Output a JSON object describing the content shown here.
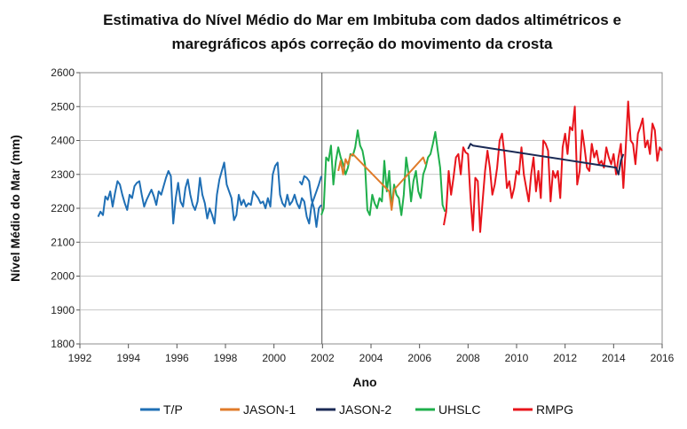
{
  "chart_data": {
    "type": "line",
    "title_line1": "Estimativa do Nível Médio do Mar em Imbituba com dados  altimétricos e",
    "title_line2": "maregráficos após correção do movimento da crosta",
    "xlabel": "Ano",
    "ylabel": "Nível Médio do Mar (mm)",
    "xlim": [
      1992,
      2016
    ],
    "ylim": [
      1800,
      2600
    ],
    "xticks": [
      "1992",
      "1994",
      "1996",
      "1998",
      "2000",
      "2002",
      "2004",
      "2006",
      "2008",
      "2010",
      "2012",
      "2014",
      "2016"
    ],
    "yticks": [
      "1800",
      "1900",
      "2000",
      "2100",
      "2200",
      "2300",
      "2400",
      "2500",
      "2600"
    ],
    "grid": true,
    "legend_position": "bottom",
    "series": [
      {
        "name": "T/P",
        "color": "#1F6FB5",
        "x": [
          1992.75,
          1992.85,
          1992.95,
          1993.05,
          1993.15,
          1993.25,
          1993.35,
          1993.45,
          1993.55,
          1993.65,
          1993.75,
          1993.85,
          1993.95,
          1994.05,
          1994.15,
          1994.25,
          1994.35,
          1994.45,
          1994.55,
          1994.65,
          1994.75,
          1994.85,
          1994.95,
          1995.05,
          1995.15,
          1995.25,
          1995.35,
          1995.45,
          1995.55,
          1995.65,
          1995.75,
          1995.85,
          1995.95,
          1996.05,
          1996.15,
          1996.25,
          1996.35,
          1996.45,
          1996.55,
          1996.65,
          1996.75,
          1996.85,
          1996.95,
          1997.05,
          1997.15,
          1997.25,
          1997.35,
          1997.45,
          1997.55,
          1997.65,
          1997.75,
          1997.85,
          1997.95,
          1998.05,
          1998.15,
          1998.25,
          1998.35,
          1998.45,
          1998.55,
          1998.65,
          1998.75,
          1998.85,
          1998.95,
          1999.05,
          1999.15,
          1999.25,
          1999.35,
          1999.45,
          1999.55,
          1999.65,
          1999.75,
          1999.85,
          1999.95,
          2000.05,
          2000.15,
          2000.25,
          2000.35,
          2000.45,
          2000.55,
          2000.65,
          2000.75,
          2000.85,
          2000.95,
          2001.05,
          2001.15,
          2001.25,
          2001.35,
          2001.45,
          2001.55,
          2001.65,
          2001.75,
          2001.85,
          2001.95
        ],
        "y": [
          2175,
          2190,
          2180,
          2235,
          2225,
          2250,
          2205,
          2245,
          2280,
          2270,
          2240,
          2215,
          2195,
          2240,
          2230,
          2265,
          2275,
          2280,
          2240,
          2205,
          2225,
          2240,
          2255,
          2235,
          2210,
          2250,
          2240,
          2265,
          2290,
          2310,
          2295,
          2155,
          2230,
          2275,
          2220,
          2205,
          2260,
          2285,
          2240,
          2210,
          2195,
          2220,
          2290,
          2240,
          2215,
          2170,
          2200,
          2180,
          2155,
          2240,
          2285,
          2310,
          2335,
          2270,
          2250,
          2230,
          2165,
          2180,
          2240,
          2210,
          2225,
          2205,
          2215,
          2210,
          2250,
          2240,
          2230,
          2215,
          2220,
          2200,
          2230,
          2205,
          2300,
          2325,
          2335,
          2240,
          2215,
          2205,
          2240,
          2210,
          2220,
          2240,
          2215,
          2200,
          2230,
          2220,
          2175,
          2155,
          2210,
          2230,
          2250,
          2270,
          2295
        ],
        "x2": [
          2001.05,
          2001.15,
          2001.25,
          2001.35,
          2001.45,
          2001.55,
          2001.65,
          2001.75,
          2001.85,
          2001.95
        ],
        "y2": [
          2280,
          2270,
          2295,
          2290,
          2280,
          2225,
          2200,
          2145,
          2200,
          2210
        ]
      },
      {
        "name": "JASON-1",
        "color": "#E07B2A",
        "x": [
          2002.65,
          2002.75,
          2002.85,
          2002.95,
          2003.05,
          2003.15,
          2003.25,
          2004.75,
          2004.85,
          2004.95,
          2006.15,
          2006.25
        ],
        "y": [
          2310,
          2340,
          2300,
          2345,
          2330,
          2355,
          2360,
          2250,
          2195,
          2255,
          2350,
          2330
        ]
      },
      {
        "name": "JASON-2",
        "color": "#1B2A55",
        "x": [
          2008.0,
          2008.1,
          2008.2,
          2014.1,
          2014.2,
          2014.3,
          2014.4
        ],
        "y": [
          2375,
          2390,
          2385,
          2320,
          2300,
          2340,
          2360
        ]
      },
      {
        "name": "UHSLC",
        "color": "#1FAF4B",
        "x": [
          2001.95,
          2002.05,
          2002.15,
          2002.25,
          2002.35,
          2002.45,
          2002.55,
          2002.65,
          2002.75,
          2002.85,
          2002.95,
          2003.05,
          2003.15,
          2003.25,
          2003.35,
          2003.45,
          2003.55,
          2003.65,
          2003.75,
          2003.85,
          2003.95,
          2004.05,
          2004.15,
          2004.25,
          2004.35,
          2004.45,
          2004.55,
          2004.65,
          2004.75,
          2004.85,
          2004.95,
          2005.05,
          2005.15,
          2005.25,
          2005.35,
          2005.45,
          2005.55,
          2005.65,
          2005.75,
          2005.85,
          2005.95,
          2006.05,
          2006.15,
          2006.25,
          2006.35,
          2006.45,
          2006.55,
          2006.65,
          2006.75,
          2006.85,
          2006.95,
          2007.05
        ],
        "y": [
          2180,
          2200,
          2350,
          2340,
          2385,
          2270,
          2340,
          2380,
          2350,
          2330,
          2300,
          2320,
          2360,
          2355,
          2380,
          2430,
          2385,
          2370,
          2330,
          2195,
          2180,
          2240,
          2215,
          2200,
          2230,
          2220,
          2340,
          2250,
          2310,
          2200,
          2270,
          2240,
          2230,
          2180,
          2240,
          2350,
          2300,
          2220,
          2280,
          2310,
          2250,
          2230,
          2300,
          2320,
          2350,
          2360,
          2390,
          2425,
          2370,
          2320,
          2210,
          2190
        ]
      },
      {
        "name": "RMPG",
        "color": "#E8141B",
        "x": [
          2007.0,
          2007.1,
          2007.2,
          2007.3,
          2007.4,
          2007.5,
          2007.6,
          2007.7,
          2007.8,
          2007.9,
          2008.0,
          2008.1,
          2008.2,
          2008.3,
          2008.4,
          2008.5,
          2008.6,
          2008.7,
          2008.8,
          2008.9,
          2009.0,
          2009.1,
          2009.2,
          2009.3,
          2009.4,
          2009.5,
          2009.6,
          2009.7,
          2009.8,
          2009.9,
          2010.0,
          2010.1,
          2010.2,
          2010.3,
          2010.4,
          2010.5,
          2010.6,
          2010.7,
          2010.8,
          2010.9,
          2011.0,
          2011.1,
          2011.2,
          2011.3,
          2011.4,
          2011.5,
          2011.6,
          2011.7,
          2011.8,
          2011.9,
          2012.0,
          2012.1,
          2012.2,
          2012.3,
          2012.4,
          2012.5,
          2012.6,
          2012.7,
          2012.8,
          2012.9,
          2013.0,
          2013.1,
          2013.2,
          2013.3,
          2013.4,
          2013.5,
          2013.6,
          2013.7,
          2013.8,
          2013.9,
          2014.0,
          2014.1,
          2014.2,
          2014.3,
          2014.4,
          2014.5,
          2014.6,
          2014.7,
          2014.8,
          2014.9,
          2015.0,
          2015.1,
          2015.2,
          2015.3,
          2015.4,
          2015.5,
          2015.6,
          2015.7,
          2015.8,
          2015.9,
          2016.0
        ],
        "y": [
          2150,
          2190,
          2310,
          2240,
          2290,
          2350,
          2360,
          2300,
          2380,
          2365,
          2360,
          2230,
          2135,
          2290,
          2280,
          2130,
          2220,
          2310,
          2370,
          2320,
          2240,
          2270,
          2320,
          2400,
          2420,
          2360,
          2260,
          2280,
          2230,
          2260,
          2310,
          2300,
          2380,
          2300,
          2260,
          2220,
          2300,
          2350,
          2250,
          2310,
          2230,
          2400,
          2390,
          2370,
          2220,
          2310,
          2290,
          2310,
          2230,
          2380,
          2420,
          2360,
          2440,
          2430,
          2500,
          2270,
          2310,
          2430,
          2380,
          2320,
          2310,
          2390,
          2350,
          2370,
          2330,
          2340,
          2320,
          2380,
          2350,
          2330,
          2360,
          2300,
          2350,
          2390,
          2260,
          2380,
          2515,
          2400,
          2390,
          2330,
          2420,
          2440,
          2465,
          2380,
          2400,
          2360,
          2450,
          2430,
          2340,
          2380,
          2370
        ]
      }
    ]
  }
}
